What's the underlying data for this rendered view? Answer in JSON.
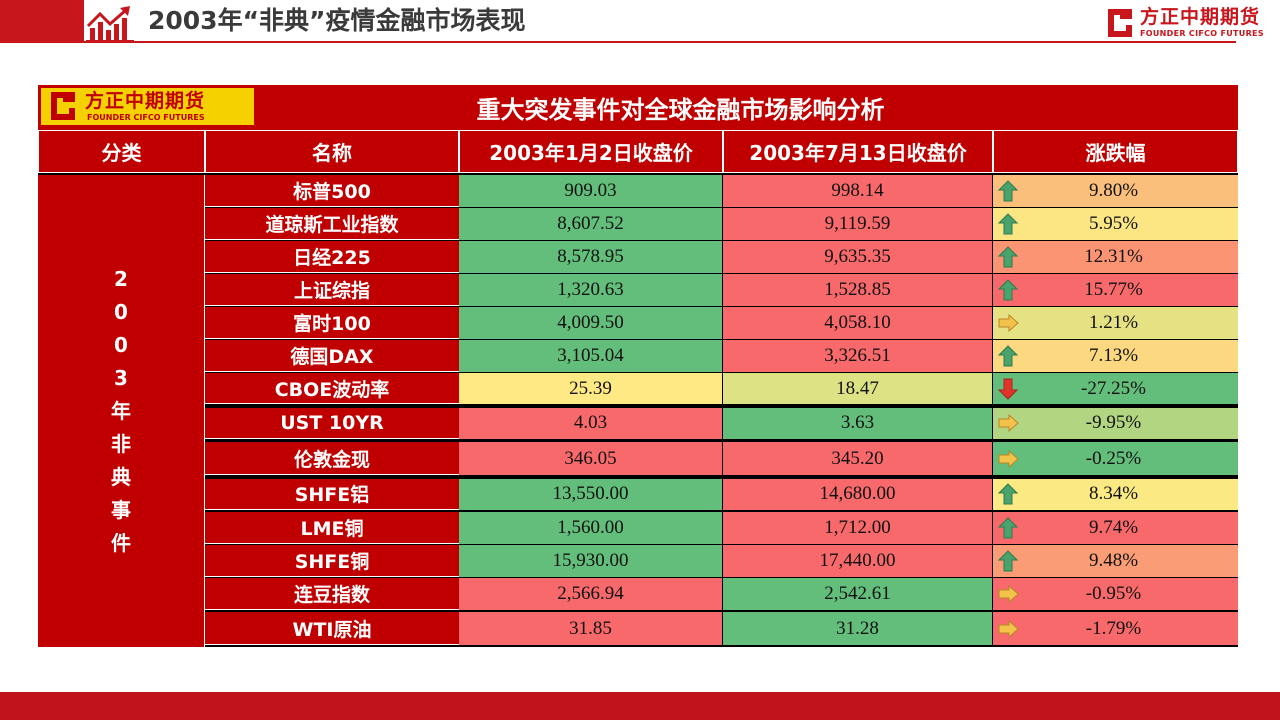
{
  "slide": {
    "title": "2003年“非典”疫情金融市场表现"
  },
  "brand": {
    "name_cn": "方正中期期货",
    "name_en": "FOUNDER CIFCO FUTURES",
    "color": "#c8161d",
    "icon": "founder-logo-icon"
  },
  "table": {
    "title": "重大突发事件对全球金融市场影响分析",
    "headers": [
      "分类",
      "名称",
      "2003年1月2日收盘价",
      "2003年7月13日收盘价",
      "涨跌幅"
    ],
    "category": "2003年非典事件",
    "colors": {
      "header": "#c00000",
      "green": "#63be7b",
      "red": "#f8696b",
      "yellow": "#ffe984",
      "light_green": "#b1d580",
      "orange": "#fbaa77",
      "lemon": "#fbe983"
    },
    "rows": [
      {
        "name": "标普500",
        "v1": "909.03",
        "v2": "998.14",
        "chg": "9.80%",
        "dir": "up",
        "c1": "#63be7b",
        "c2": "#f8696b",
        "c3": "#fbbf7c"
      },
      {
        "name": "道琼斯工业指数",
        "v1": "8,607.52",
        "v2": "9,119.59",
        "chg": "5.95%",
        "dir": "up",
        "c1": "#63be7b",
        "c2": "#f8696b",
        "c3": "#fbe683"
      },
      {
        "name": "日经225",
        "v1": "8,578.95",
        "v2": "9,635.35",
        "chg": "12.31%",
        "dir": "up",
        "c1": "#63be7b",
        "c2": "#f8696b",
        "c3": "#fa9473"
      },
      {
        "name": "上证综指",
        "v1": "1,320.63",
        "v2": "1,528.85",
        "chg": "15.77%",
        "dir": "up",
        "c1": "#63be7b",
        "c2": "#f8696b",
        "c3": "#f8696b"
      },
      {
        "name": "富时100",
        "v1": "4,009.50",
        "v2": "4,058.10",
        "chg": "1.21%",
        "dir": "right",
        "c1": "#63be7b",
        "c2": "#f8696b",
        "c3": "#e6e283"
      },
      {
        "name": "德国DAX",
        "v1": "3,105.04",
        "v2": "3,326.51",
        "chg": "7.13%",
        "dir": "up",
        "c1": "#63be7b",
        "c2": "#f8696b",
        "c3": "#fcd980"
      },
      {
        "name": "CBOE波动率",
        "v1": "25.39",
        "v2": "18.47",
        "chg": "-27.25%",
        "dir": "down",
        "c1": "#ffe984",
        "c2": "#dde284",
        "c3": "#63be7b"
      },
      {
        "name": "UST 10YR",
        "v1": "4.03",
        "v2": "3.63",
        "chg": "-9.95%",
        "dir": "right",
        "c1": "#f8696b",
        "c2": "#63be7b",
        "c3": "#b1d580"
      },
      {
        "name": "伦敦金现",
        "v1": "346.05",
        "v2": "345.20",
        "chg": "-0.25%",
        "dir": "right",
        "c1": "#f8696b",
        "c2": "#f8696b",
        "c3": "#63be7b"
      },
      {
        "name": "SHFE铝",
        "v1": "13,550.00",
        "v2": "14,680.00",
        "chg": "8.34%",
        "dir": "up",
        "c1": "#63be7b",
        "c2": "#f8696b",
        "c3": "#fbe983"
      },
      {
        "name": "LME铜",
        "v1": "1,560.00",
        "v2": "1,712.00",
        "chg": "9.74%",
        "dir": "up",
        "c1": "#63be7b",
        "c2": "#f8696b",
        "c3": "#f8696b"
      },
      {
        "name": "SHFE铜",
        "v1": "15,930.00",
        "v2": "17,440.00",
        "chg": "9.48%",
        "dir": "up",
        "c1": "#63be7b",
        "c2": "#f8696b",
        "c3": "#fa9c75"
      },
      {
        "name": "连豆指数",
        "v1": "2,566.94",
        "v2": "2,542.61",
        "chg": "-0.95%",
        "dir": "right",
        "c1": "#f8696b",
        "c2": "#63be7b",
        "c3": "#f8696b"
      },
      {
        "name": "WTI原油",
        "v1": "31.85",
        "v2": "31.28",
        "chg": "-1.79%",
        "dir": "right",
        "c1": "#f8696b",
        "c2": "#63be7b",
        "c3": "#f8696b"
      }
    ]
  }
}
